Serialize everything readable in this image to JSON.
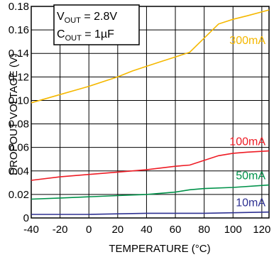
{
  "chart_data": {
    "type": "line",
    "title": "",
    "xlabel": "TEMPERATURE (°C)",
    "ylabel": "DROPOUT VOLTAGE (V)",
    "xlim": [
      -40,
      125
    ],
    "ylim": [
      0,
      0.18
    ],
    "x_ticks": [
      "-40",
      "-20",
      "0",
      "20",
      "40",
      "60",
      "80",
      "100",
      "120"
    ],
    "x_tick_values": [
      -40,
      -20,
      0,
      20,
      40,
      60,
      80,
      100,
      120
    ],
    "y_ticks": [
      "0",
      "0.02",
      "0.04",
      "0.06",
      "0.08",
      "0.10",
      "0.12",
      "0.14",
      "0.16",
      "0.18"
    ],
    "y_tick_values": [
      0,
      0.02,
      0.04,
      0.06,
      0.08,
      0.1,
      0.12,
      0.14,
      0.16,
      0.18
    ],
    "grid": true,
    "annotation": {
      "vout_main": "V",
      "vout_sub": "OUT",
      "vout_value": " = 2.8V",
      "cout_main": "C",
      "cout_sub": "OUT",
      "cout_value": " = 1µF"
    },
    "series": [
      {
        "name": "300mA",
        "color": "#f5b800",
        "x": [
          -40,
          -20,
          0,
          20,
          30,
          40,
          50,
          60,
          70,
          80,
          90,
          100,
          110,
          125
        ],
        "y": [
          0.098,
          0.105,
          0.112,
          0.12,
          0.125,
          0.129,
          0.133,
          0.137,
          0.141,
          0.153,
          0.165,
          0.169,
          0.172,
          0.177
        ]
      },
      {
        "name": "100mA",
        "color": "#ee1c25",
        "x": [
          -40,
          -20,
          0,
          20,
          40,
          60,
          70,
          80,
          90,
          100,
          110,
          125
        ],
        "y": [
          0.032,
          0.035,
          0.037,
          0.039,
          0.041,
          0.044,
          0.045,
          0.049,
          0.053,
          0.055,
          0.056,
          0.057
        ]
      },
      {
        "name": "50mA",
        "color": "#00924a",
        "x": [
          -40,
          -20,
          0,
          20,
          40,
          60,
          70,
          80,
          100,
          125
        ],
        "y": [
          0.016,
          0.017,
          0.018,
          0.019,
          0.02,
          0.022,
          0.024,
          0.025,
          0.026,
          0.028
        ]
      },
      {
        "name": "10mA",
        "color": "#2e3192",
        "x": [
          -40,
          0,
          40,
          80,
          125
        ],
        "y": [
          0.003,
          0.003,
          0.004,
          0.004,
          0.005
        ]
      }
    ]
  }
}
